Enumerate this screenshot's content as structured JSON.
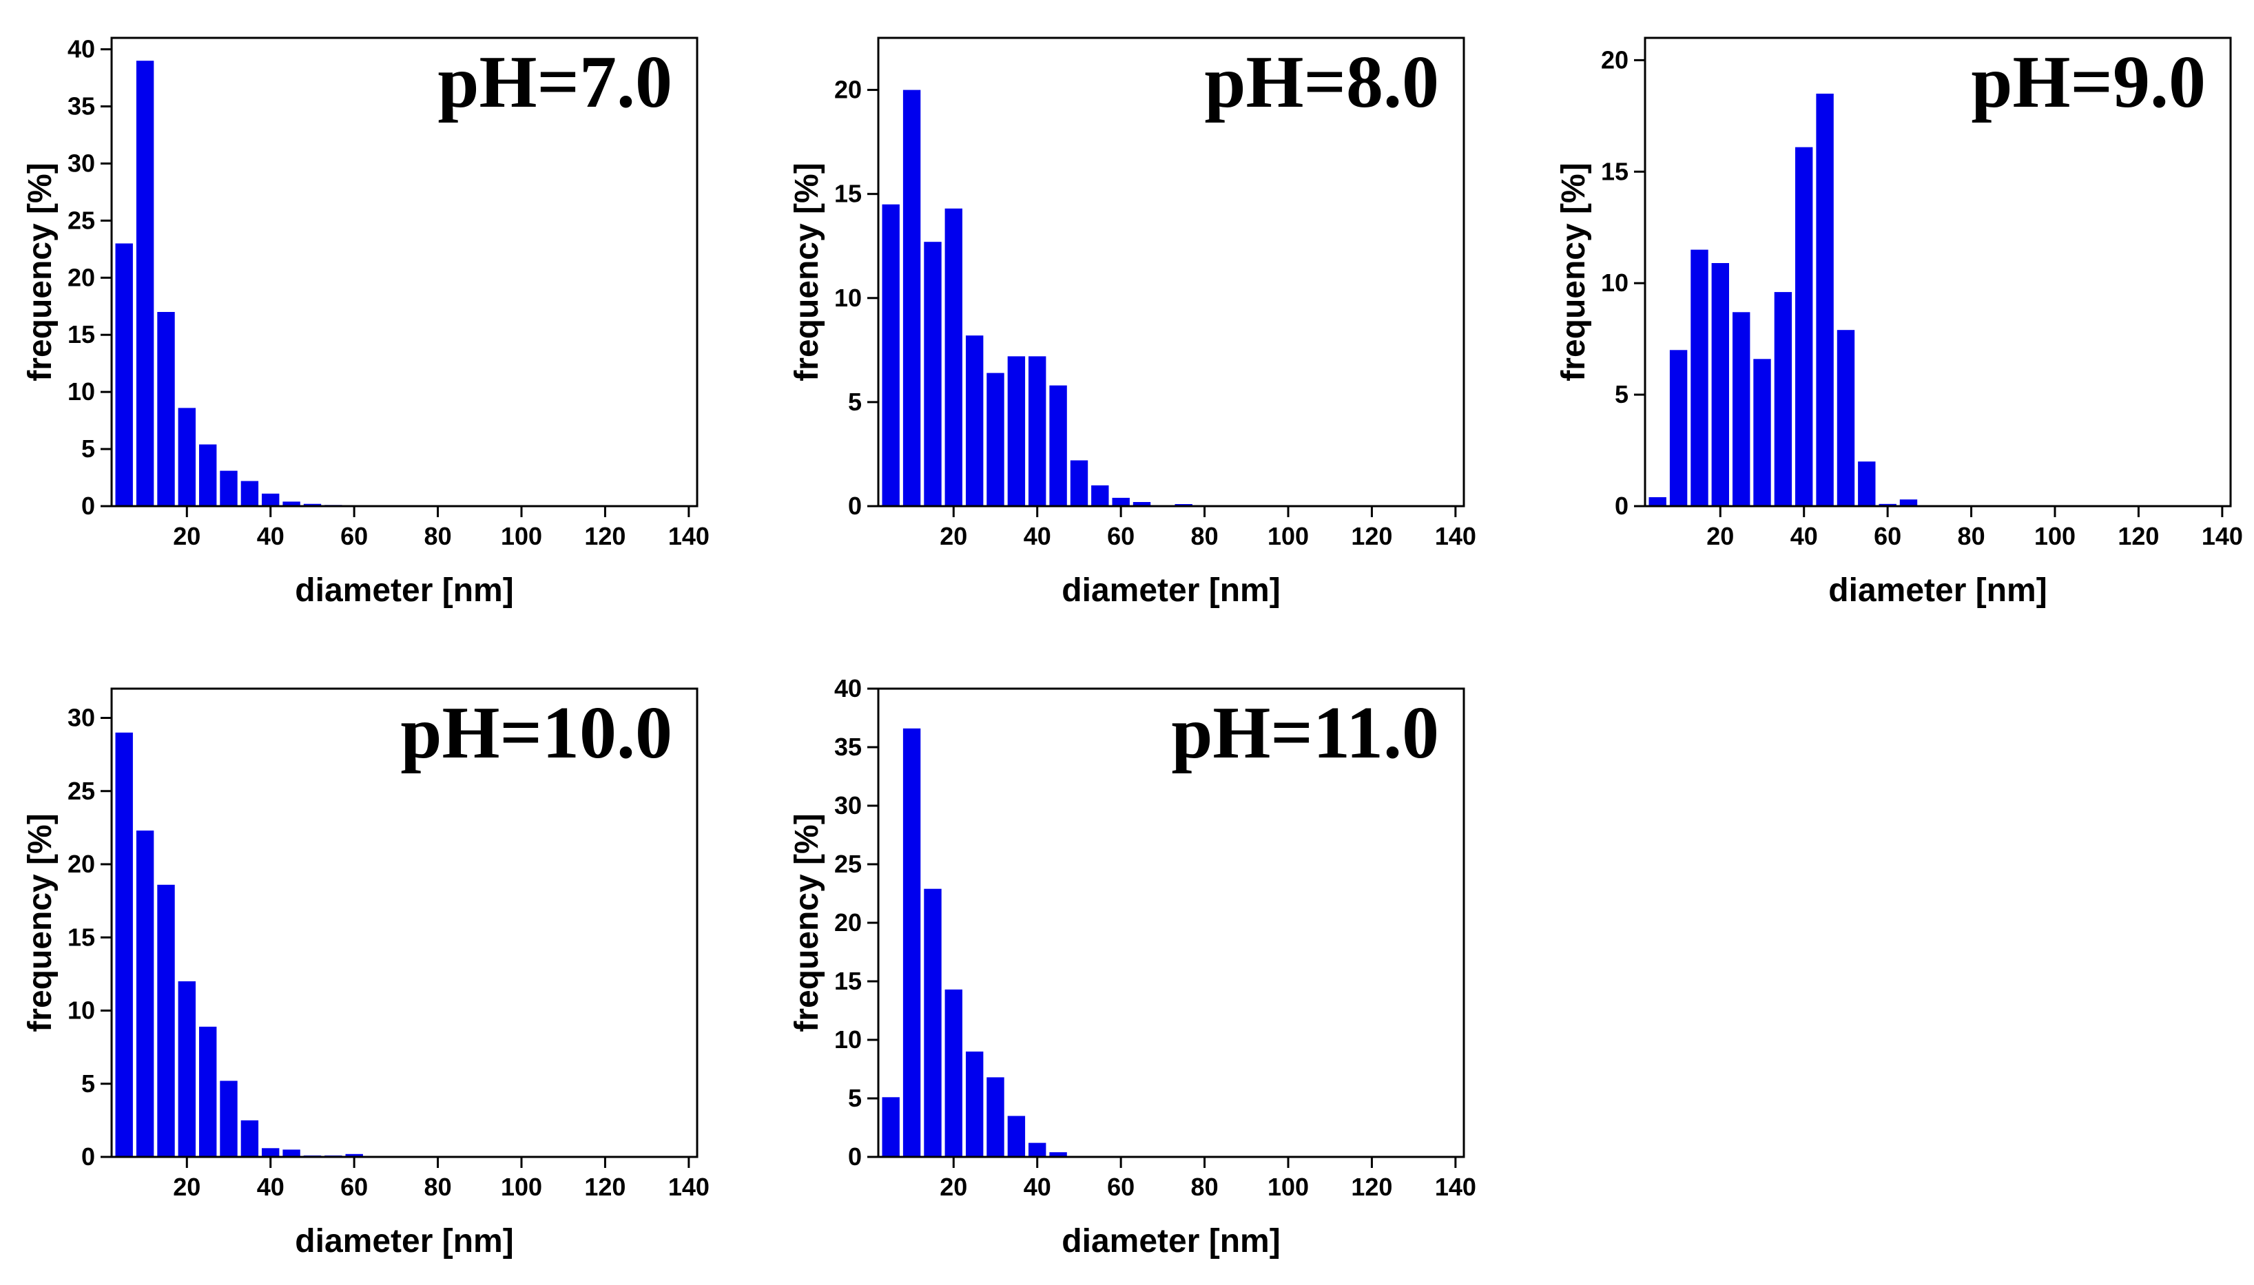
{
  "figure_colors": {
    "bar": "#0000ee",
    "axis": "#000000",
    "background": "#ffffff"
  },
  "chart_data": [
    {
      "type": "bar",
      "title": "pH=7.0",
      "xlabel": "diameter [nm]",
      "ylabel": "frequency [%]",
      "xlim": [
        2,
        142
      ],
      "ylim": [
        0,
        41
      ],
      "xticks": [
        20,
        40,
        60,
        80,
        100,
        120,
        140
      ],
      "yticks": [
        0,
        5,
        10,
        15,
        20,
        25,
        30,
        35,
        40
      ],
      "bin_width": 5,
      "x": [
        5,
        10,
        15,
        20,
        25,
        30,
        35,
        40,
        45,
        50,
        55
      ],
      "values": [
        23.0,
        39.0,
        17.0,
        8.6,
        5.4,
        3.1,
        2.2,
        1.1,
        0.4,
        0.2,
        0.1
      ]
    },
    {
      "type": "bar",
      "title": "pH=8.0",
      "xlabel": "diameter [nm]",
      "ylabel": "frequency [%]",
      "xlim": [
        2,
        142
      ],
      "ylim": [
        0,
        22.5
      ],
      "xticks": [
        20,
        40,
        60,
        80,
        100,
        120,
        140
      ],
      "yticks": [
        0,
        5,
        10,
        15,
        20
      ],
      "bin_width": 5,
      "x": [
        5,
        10,
        15,
        20,
        25,
        30,
        35,
        40,
        45,
        50,
        55,
        60,
        65,
        75
      ],
      "values": [
        14.5,
        20.0,
        12.7,
        14.3,
        8.2,
        6.4,
        7.2,
        7.2,
        5.8,
        2.2,
        1.0,
        0.4,
        0.2,
        0.1
      ]
    },
    {
      "type": "bar",
      "title": "pH=9.0",
      "xlabel": "diameter [nm]",
      "ylabel": "frequency [%]",
      "xlim": [
        2,
        142
      ],
      "ylim": [
        0,
        21
      ],
      "xticks": [
        20,
        40,
        60,
        80,
        100,
        120,
        140
      ],
      "yticks": [
        0,
        5,
        10,
        15,
        20
      ],
      "bin_width": 5,
      "x": [
        5,
        10,
        15,
        20,
        25,
        30,
        35,
        40,
        45,
        50,
        55,
        60,
        65
      ],
      "values": [
        0.4,
        7.0,
        11.5,
        10.9,
        8.7,
        6.6,
        9.6,
        16.1,
        18.5,
        7.9,
        2.0,
        0.1,
        0.3
      ]
    },
    {
      "type": "bar",
      "title": "pH=10.0",
      "xlabel": "diameter [nm]",
      "ylabel": "frequency [%]",
      "xlim": [
        2,
        142
      ],
      "ylim": [
        0,
        32
      ],
      "xticks": [
        20,
        40,
        60,
        80,
        100,
        120,
        140
      ],
      "yticks": [
        0,
        5,
        10,
        15,
        20,
        25,
        30
      ],
      "bin_width": 5,
      "x": [
        5,
        10,
        15,
        20,
        25,
        30,
        35,
        40,
        45,
        50,
        55,
        60
      ],
      "values": [
        29.0,
        22.3,
        18.6,
        12.0,
        8.9,
        5.2,
        2.5,
        0.6,
        0.5,
        0.1,
        0.1,
        0.2
      ]
    },
    {
      "type": "bar",
      "title": "pH=11.0",
      "xlabel": "diameter [nm]",
      "ylabel": "frequency [%]",
      "xlim": [
        2,
        142
      ],
      "ylim": [
        0,
        40
      ],
      "xticks": [
        20,
        40,
        60,
        80,
        100,
        120,
        140
      ],
      "yticks": [
        0,
        5,
        10,
        15,
        20,
        25,
        30,
        35,
        40
      ],
      "bin_width": 5,
      "x": [
        5,
        10,
        15,
        20,
        25,
        30,
        35,
        40,
        45
      ],
      "values": [
        5.1,
        36.6,
        22.9,
        14.3,
        9.0,
        6.8,
        3.5,
        1.2,
        0.4
      ]
    }
  ]
}
